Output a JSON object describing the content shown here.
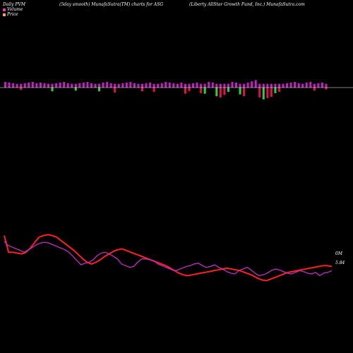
{
  "header": {
    "left": "Daily PVM",
    "center": "(5day smooth) MunafaSutra(TM) charts for ASG",
    "right": "(Liberty AllStar Growth Fund, Inc.) MunafaSutra.com"
  },
  "legend": [
    {
      "label": "Volume",
      "color": "#e040a0"
    },
    {
      "label": "Price",
      "color": "#f4a060"
    }
  ],
  "colors": {
    "bar_up": "#c020c0",
    "bar_down_pos": "#e01050",
    "bar_down_neg": "#30d030",
    "price": "#ff2020",
    "volume": "#c030c0",
    "background": "#000000"
  },
  "chart_data": [
    {
      "type": "bar",
      "panel": "upper",
      "values": [
        9,
        8,
        7,
        6,
        -4,
        7,
        8,
        9,
        7,
        8,
        7,
        6,
        -6,
        7,
        8,
        9,
        7,
        6,
        -5,
        7,
        8,
        9,
        7,
        6,
        -6,
        8,
        9,
        7,
        -8,
        6,
        7,
        8,
        9,
        7,
        6,
        -6,
        7,
        8,
        -7,
        6,
        7,
        9,
        8,
        7,
        6,
        8,
        -10,
        -6,
        7,
        8,
        -9,
        -10,
        9,
        8,
        -14,
        -16,
        -12,
        -7,
        9,
        8,
        -11,
        -14,
        8,
        10,
        12,
        -16,
        -19,
        -17,
        -15,
        -9,
        -7,
        6,
        7,
        8,
        9,
        7,
        6,
        8,
        9,
        -5,
        7,
        8,
        -3
      ],
      "ylim": [
        -25,
        25
      ]
    },
    {
      "type": "line",
      "panel": "lower",
      "series": [
        {
          "name": "Price",
          "label": "5.84",
          "values": [
            50,
            70,
            70,
            71,
            72,
            70,
            65,
            58,
            52,
            50,
            49,
            50,
            52,
            56,
            60,
            64,
            68,
            73,
            78,
            82,
            84,
            82,
            79,
            75,
            72,
            69,
            67,
            66,
            68,
            70,
            72,
            74,
            76,
            78,
            80,
            82,
            84,
            86,
            89,
            92,
            95,
            97,
            98,
            97,
            96,
            95,
            94,
            93,
            92,
            91,
            90,
            89,
            90,
            91,
            92,
            94,
            96,
            98,
            101,
            103,
            104,
            102,
            100,
            98,
            96,
            94,
            93,
            92,
            91,
            90,
            89,
            88,
            87,
            86,
            86,
            87
          ]
        },
        {
          "name": "Volume",
          "label": "0M",
          "values": [
            57,
            62,
            64,
            66,
            68,
            70,
            67,
            64,
            61,
            59,
            58,
            59,
            61,
            63,
            65,
            67,
            70,
            75,
            80,
            85,
            83,
            82,
            79,
            74,
            71,
            70,
            72,
            75,
            78,
            84,
            86,
            88,
            87,
            82,
            78,
            78,
            79,
            80,
            84,
            86,
            88,
            90,
            92,
            91,
            89,
            87,
            86,
            84,
            83,
            86,
            88,
            87,
            85,
            88,
            90,
            93,
            95,
            96,
            92,
            90,
            88,
            91,
            95,
            98,
            97,
            95,
            92,
            90,
            91,
            93,
            95,
            96,
            94,
            92,
            93,
            95,
            96,
            94,
            98,
            95,
            94,
            92
          ]
        }
      ]
    }
  ]
}
